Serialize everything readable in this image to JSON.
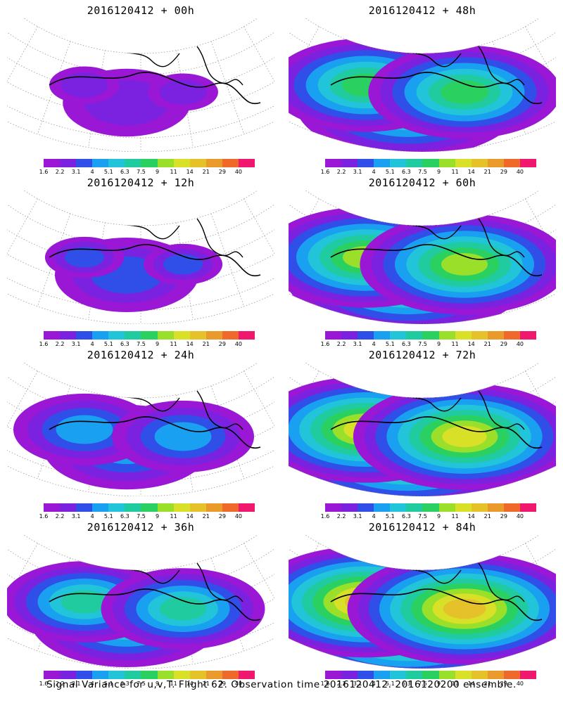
{
  "panels": [
    {
      "title": "2016120412 + 00h",
      "forecast_hour": 0,
      "spread": 0.22
    },
    {
      "title": "2016120412 + 48h",
      "forecast_hour": 48,
      "spread": 0.72
    },
    {
      "title": "2016120412 + 12h",
      "forecast_hour": 12,
      "spread": 0.3
    },
    {
      "title": "2016120412 + 60h",
      "forecast_hour": 60,
      "spread": 0.82
    },
    {
      "title": "2016120412 + 24h",
      "forecast_hour": 24,
      "spread": 0.42
    },
    {
      "title": "2016120412 + 72h",
      "forecast_hour": 72,
      "spread": 0.9
    },
    {
      "title": "2016120412 + 36h",
      "forecast_hour": 36,
      "spread": 0.55
    },
    {
      "title": "2016120412 + 84h",
      "forecast_hour": 84,
      "spread": 0.97
    }
  ],
  "colorbar": {
    "labels": [
      "1.6",
      "2.2",
      "3.1",
      "4",
      "5.1",
      "6.3",
      "7.5",
      "9",
      "11",
      "14",
      "21",
      "29",
      "40"
    ],
    "colors": [
      "#9a17d6",
      "#7a22e0",
      "#2f4fe8",
      "#1aa0f0",
      "#21c4d8",
      "#20cba0",
      "#2bd160",
      "#9adf2a",
      "#d8e028",
      "#e6c22a",
      "#ea9a2a",
      "#ef6a2a",
      "#f0186e"
    ]
  },
  "caption": "Signal Variance for u,v,T. Flight 62. Observation time 2016120412. 2016120200 ensemble."
}
